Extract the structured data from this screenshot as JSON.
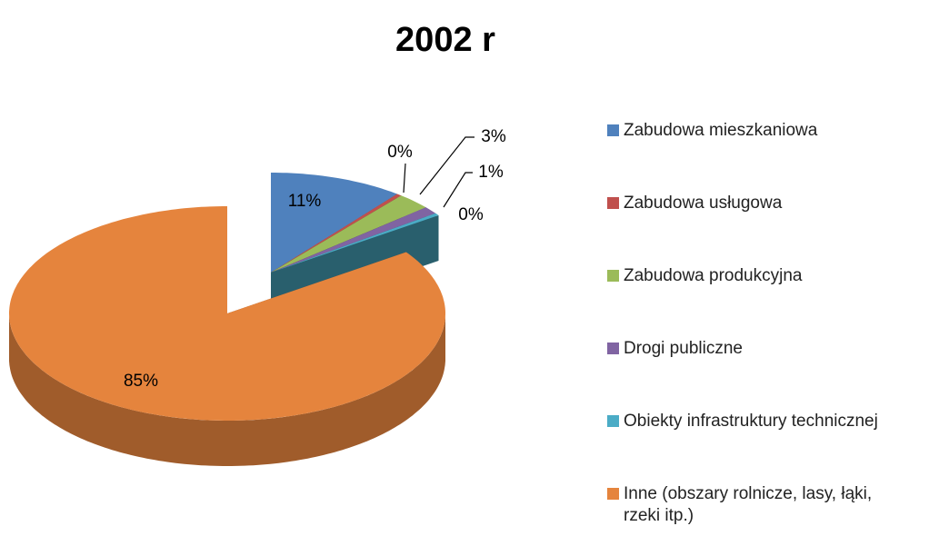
{
  "chart_data": {
    "type": "pie3d",
    "title": "2002 r",
    "categories": [
      "Zabudowa mieszkaniowa",
      "Zabudowa usługowa",
      "Zabudowa produkcyjna",
      "Drogi publiczne",
      "Obiekty infrastruktury technicznej",
      "Inne (obszary rolnicze, lasy, łąki, rzeki itp.)"
    ],
    "values": [
      10.6,
      0.4,
      2.7,
      1.2,
      0.4,
      84.7
    ],
    "value_labels": [
      "11%",
      "0%",
      "3%",
      "1%",
      "0%",
      "85%"
    ],
    "colors": [
      "#4f81bd",
      "#c0504d",
      "#9bbb59",
      "#8064a2",
      "#4bacc6",
      "#e5843d"
    ],
    "legend": "right"
  }
}
